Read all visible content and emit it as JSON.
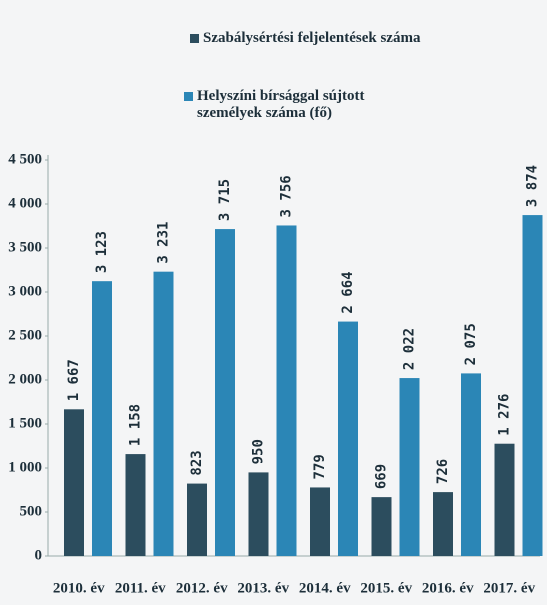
{
  "chart_data": {
    "type": "bar",
    "categories": [
      "2010. év",
      "2011. év",
      "2012. év",
      "2013. év",
      "2014. év",
      "2015. év",
      "2016. év",
      "2017. év"
    ],
    "series": [
      {
        "name": "Szabálysértési feljelentések száma",
        "color": "#2c4d5e",
        "values": [
          1667,
          1158,
          823,
          950,
          779,
          669,
          726,
          1276
        ],
        "value_labels": [
          "1 667",
          "1 158",
          "823",
          "950",
          "779",
          "669",
          "726",
          "1 276"
        ]
      },
      {
        "name": "Helyszíni bírsággal sújtott személyek száma (fő)",
        "color": "#2b86b6",
        "values": [
          3123,
          3231,
          3715,
          3756,
          2664,
          2022,
          2075,
          3874
        ],
        "value_labels": [
          "3 123",
          "3 231",
          "3 715",
          "3 756",
          "2 664",
          "2 022",
          "2 075",
          "3 874"
        ]
      }
    ],
    "ylim": [
      0,
      4500
    ],
    "yticks": [
      0,
      500,
      {
        "value": 1000,
        "label": "1 000"
      },
      {
        "value": 1500,
        "label": "1 500"
      },
      {
        "value": 2000,
        "label": "2 000"
      },
      {
        "value": 2500,
        "label": "2 500"
      },
      {
        "value": 3000,
        "label": "3 000"
      },
      {
        "value": 3500,
        "label": "3 500"
      },
      {
        "value": 4000,
        "label": "4 000"
      },
      {
        "value": 4500,
        "label": "4 500"
      }
    ]
  }
}
